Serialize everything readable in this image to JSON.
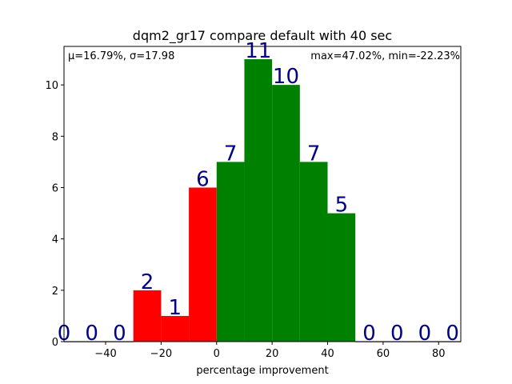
{
  "chart_data": {
    "type": "bar",
    "title": "dqm2_gr17 compare default with 40 sec",
    "xlabel": "percentage improvement",
    "ylabel": "",
    "stats_left": "μ=16.79%, σ=17.98",
    "stats_right": "max=47.02%, min=-22.23%",
    "xlim": [
      -55,
      88
    ],
    "ylim": [
      0,
      11.5
    ],
    "xticks": [
      -40,
      -20,
      0,
      20,
      40,
      60,
      80
    ],
    "xtick_labels": [
      "−40",
      "−20",
      "0",
      "20",
      "40",
      "60",
      "80"
    ],
    "yticks": [
      0,
      2,
      4,
      6,
      8,
      10
    ],
    "yticks_labels": [
      "0",
      "2",
      "4",
      "6",
      "8",
      "10"
    ],
    "bin_edges": [
      -60,
      -50,
      -40,
      -30,
      -20,
      -10,
      0,
      10,
      20,
      30,
      40,
      50,
      60,
      70,
      80,
      90
    ],
    "values": [
      0,
      0,
      0,
      2,
      1,
      6,
      7,
      11,
      10,
      7,
      5,
      0,
      0,
      0,
      0
    ],
    "value_labels": [
      "0",
      "0",
      "0",
      "2",
      "1",
      "6",
      "7",
      "11",
      "10",
      "7",
      "5",
      "0",
      "0",
      "0",
      "0"
    ],
    "bar_colors": [
      "#ff0000",
      "#ff0000",
      "#ff0000",
      "#ff0000",
      "#ff0000",
      "#ff0000",
      "#008000",
      "#008000",
      "#008000",
      "#008000",
      "#008000",
      "#008000",
      "#008000",
      "#008000",
      "#008000"
    ],
    "label_color": "#00008b",
    "grid": false
  }
}
